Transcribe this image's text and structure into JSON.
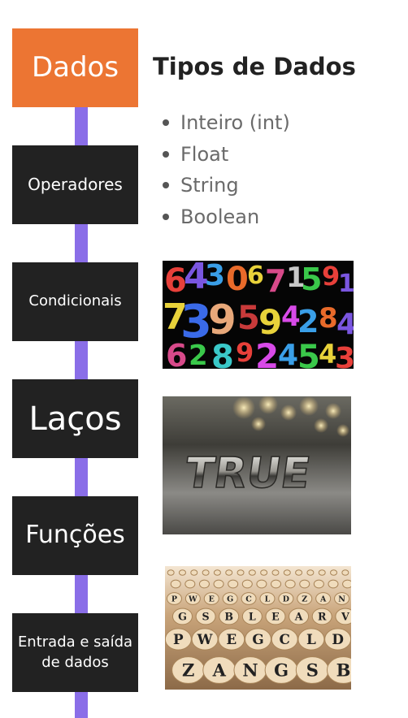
{
  "sidebar": {
    "items": [
      {
        "label": "Dados",
        "active": true
      },
      {
        "label": "Operadores",
        "active": false
      },
      {
        "label": "Condicionais",
        "active": false
      },
      {
        "label": "Laços",
        "active": false
      },
      {
        "label": "Funções",
        "active": false
      },
      {
        "label": "Entrada e saída de dados",
        "active": false
      }
    ]
  },
  "main": {
    "title": "Tipos de Dados",
    "types": [
      "Inteiro (int)",
      "Float",
      "String",
      "Boolean"
    ],
    "images": [
      {
        "icon": "colorful-numbers-image"
      },
      {
        "icon": "true-word-image",
        "text": "TRUE"
      },
      {
        "icon": "letter-tiles-image",
        "letters": [
          "P",
          "W",
          "E",
          "G",
          "C",
          "L",
          "D",
          "Z",
          "A",
          "N",
          "G",
          "S",
          "B",
          "L",
          "E",
          "A",
          "R",
          "V"
        ]
      }
    ]
  },
  "colors": {
    "accent": "#ec7533",
    "nav_background": "#222222",
    "timeline": "#8a6ee8",
    "title_text": "#222222",
    "list_text": "#6a6a6a"
  }
}
